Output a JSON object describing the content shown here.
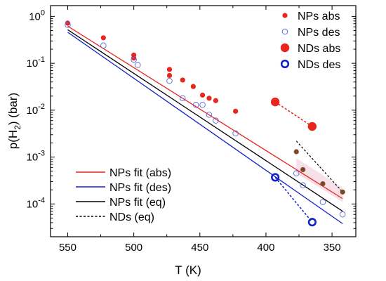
{
  "chart_data": {
    "type": "scatter",
    "title": "",
    "xlabel": "T (K)",
    "ylabel_base": "p(H",
    "ylabel_sub": "2",
    "ylabel_end": ") (bar)",
    "x_axis_reversed": true,
    "xlim": [
      563,
      332
    ],
    "y_scale": "log",
    "ylim": [
      2e-05,
      1.7
    ],
    "x_ticks": [
      550,
      500,
      450,
      400,
      350
    ],
    "x_tick_labels": [
      "550",
      "500",
      "450",
      "400",
      "350"
    ],
    "y_ticks": [
      0.0001,
      0.001,
      0.01,
      0.1,
      1
    ],
    "y_tick_labels": [
      {
        "base": "10",
        "exp": "-4"
      },
      {
        "base": "10",
        "exp": "-3"
      },
      {
        "base": "10",
        "exp": "-2"
      },
      {
        "base": "10",
        "exp": "-1"
      },
      {
        "base": "10",
        "exp": "0"
      }
    ],
    "grid": false,
    "legend_top_right": [
      "NPs abs",
      "NPs des",
      "NDs abs",
      "NDs des"
    ],
    "legend_bottom_left": [
      "NPs fit (abs)",
      "NPs fit (des)",
      "NPs fit (eq)",
      "NDs (eq)"
    ],
    "colors": {
      "red": "#e8261e",
      "blue": "#1420c8",
      "black": "#000000",
      "brown": "#7a4a28",
      "band": "#f6dde4"
    },
    "series": [
      {
        "name": "NPs abs",
        "marker": "filled-circle-small",
        "points": [
          [
            550,
            0.72
          ],
          [
            523,
            0.35
          ],
          [
            500,
            0.15
          ],
          [
            500,
            0.13
          ],
          [
            473,
            0.074
          ],
          [
            473,
            0.055
          ],
          [
            463,
            0.044
          ],
          [
            455,
            0.032
          ],
          [
            448,
            0.021
          ],
          [
            443,
            0.018
          ],
          [
            438,
            0.016
          ],
          [
            423,
            0.0095
          ],
          [
            377,
            0.0013
          ],
          [
            372,
            0.00054
          ],
          [
            357,
            0.00027
          ],
          [
            342,
            0.00018
          ]
        ]
      },
      {
        "name": "NPs des",
        "marker": "open-circle-small",
        "points": [
          [
            550,
            0.66
          ],
          [
            523,
            0.24
          ],
          [
            500,
            0.12
          ],
          [
            497,
            0.092
          ],
          [
            473,
            0.042
          ],
          [
            463,
            0.018
          ],
          [
            453,
            0.013
          ],
          [
            448,
            0.013
          ],
          [
            443,
            0.008
          ],
          [
            438,
            0.006
          ],
          [
            423,
            0.0032
          ],
          [
            377,
            0.00045
          ],
          [
            372,
            0.00025
          ],
          [
            357,
            0.00011
          ],
          [
            342,
            6e-05
          ]
        ]
      },
      {
        "name": "NDs abs",
        "marker": "filled-circle-large",
        "points": [
          [
            393,
            0.015
          ],
          [
            365,
            0.0045
          ]
        ]
      },
      {
        "name": "NDs des",
        "marker": "open-circle-large",
        "points": [
          [
            393,
            0.00037
          ],
          [
            365,
            4.1e-05
          ]
        ]
      }
    ],
    "fit_lines": [
      {
        "name": "NPs fit (abs)",
        "x": [
          550,
          342
        ],
        "y": [
          0.62,
          0.00013
        ]
      },
      {
        "name": "NPs fit (des)",
        "x": [
          550,
          342
        ],
        "y": [
          0.46,
          3.8e-05
        ]
      },
      {
        "name": "NPs fit (eq)",
        "x": [
          550,
          342
        ],
        "y": [
          0.52,
          7e-05
        ]
      }
    ],
    "dashed_lines": [
      {
        "x": [
          393,
          365
        ],
        "y": [
          0.015,
          0.0045
        ]
      },
      {
        "x": [
          393,
          365
        ],
        "y": [
          0.00037,
          4.1e-05
        ]
      },
      {
        "x": [
          377,
          342
        ],
        "y": [
          0.0022,
          0.00018
        ]
      }
    ]
  }
}
